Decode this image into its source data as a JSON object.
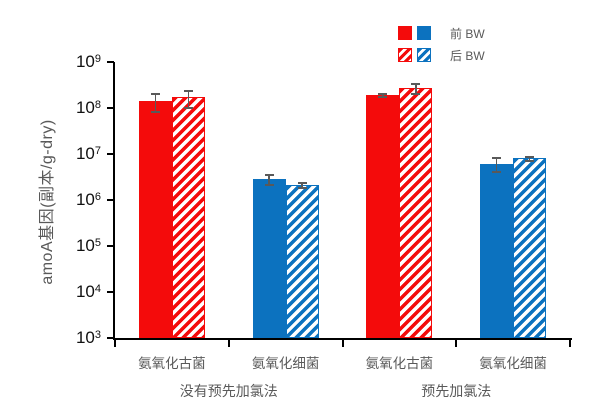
{
  "chart_data": {
    "type": "bar",
    "y_scale": "log10",
    "title": "",
    "ylabel": "amoA基因(副本/g-dry)",
    "xlabel": "",
    "ylim": [
      1000,
      1000000000
    ],
    "y_tick_exponents": [
      9,
      8,
      7,
      6,
      5,
      4,
      3
    ],
    "grid": false,
    "legend_position": "top-right",
    "legend": [
      {
        "label": "前 BW",
        "pattern": "solid"
      },
      {
        "label": "后 BW",
        "pattern": "hatched"
      }
    ],
    "colors": {
      "archaea": "#F40B0B",
      "bacteria": "#0C72BF",
      "error_bar": "#595959",
      "axis": "#000000",
      "text_gray": "#595959"
    },
    "group_labels": [
      "没有预先加氯法",
      "预先加氯法"
    ],
    "categories": [
      {
        "label": "氨氧化古菌",
        "group": 0,
        "color_key": "archaea",
        "bars": [
          {
            "series": "前 BW",
            "pattern": "solid",
            "value": 140000000.0,
            "error": 60000000.0
          },
          {
            "series": "后 BW",
            "pattern": "hatched",
            "value": 170000000.0,
            "error": 70000000.0
          }
        ]
      },
      {
        "label": "氨氧化细菌",
        "group": 0,
        "color_key": "bacteria",
        "bars": [
          {
            "series": "前 BW",
            "pattern": "solid",
            "value": 2800000.0,
            "error": 700000.0
          },
          {
            "series": "后 BW",
            "pattern": "hatched",
            "value": 2100000.0,
            "error": 300000.0
          }
        ]
      },
      {
        "label": "氨氧化古菌",
        "group": 1,
        "color_key": "archaea",
        "bars": [
          {
            "series": "前 BW",
            "pattern": "solid",
            "value": 190000000.0,
            "error": 15000000.0
          },
          {
            "series": "后 BW",
            "pattern": "hatched",
            "value": 270000000.0,
            "error": 70000000.0
          }
        ]
      },
      {
        "label": "氨氧化细菌",
        "group": 1,
        "color_key": "bacteria",
        "bars": [
          {
            "series": "前 BW",
            "pattern": "solid",
            "value": 6000000.0,
            "error": 2000000.0
          },
          {
            "series": "后 BW",
            "pattern": "hatched",
            "value": 8000000.0,
            "error": 800000.0
          }
        ]
      }
    ]
  }
}
